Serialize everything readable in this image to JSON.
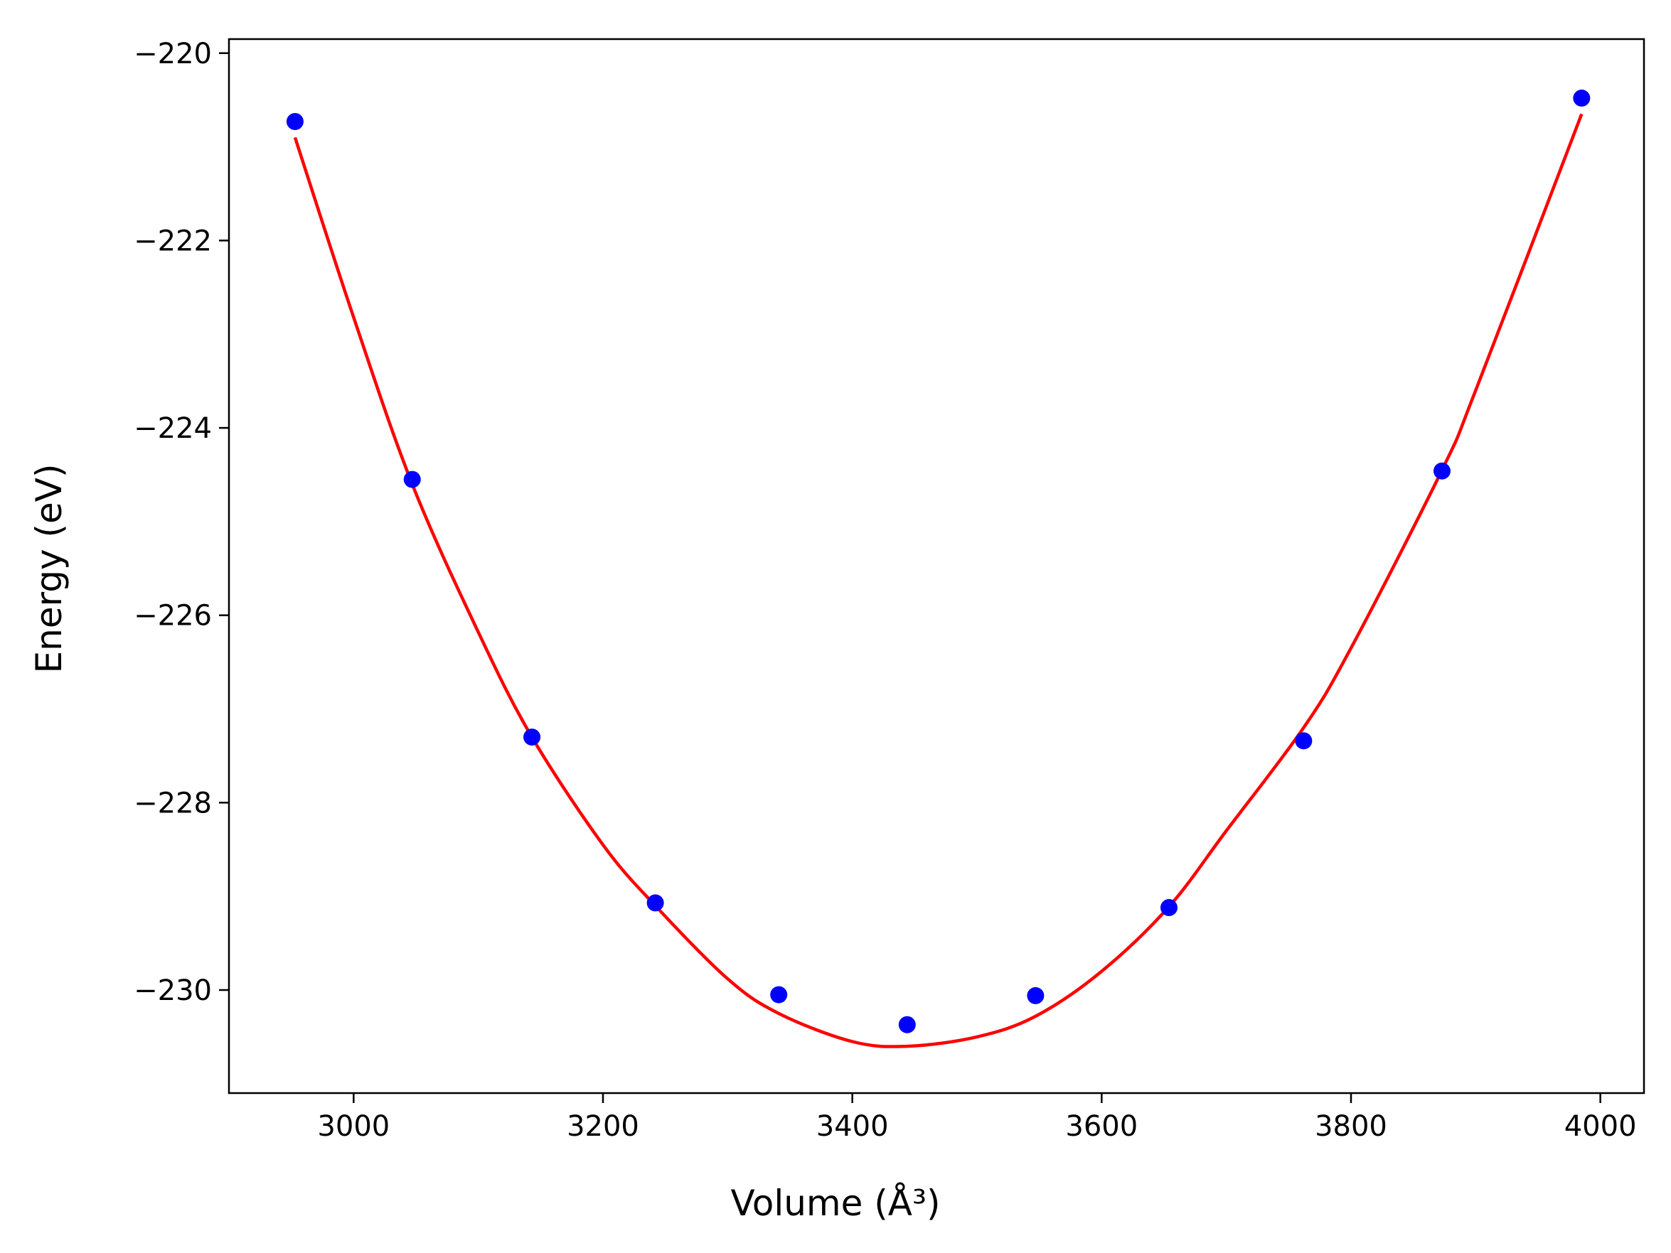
{
  "chart_data": {
    "type": "scatter",
    "xlabel": "Volume (Å³)",
    "ylabel": "Energy (eV)",
    "xlim": [
      2900,
      4035
    ],
    "ylim": [
      -231.1,
      -219.85
    ],
    "xticks": [
      3000,
      3200,
      3400,
      3600,
      3800,
      4000
    ],
    "xtick_labels": [
      "3000",
      "3200",
      "3400",
      "3600",
      "3800",
      "4000"
    ],
    "yticks": [
      -230,
      -228,
      -226,
      -224,
      -222,
      -220
    ],
    "ytick_labels": [
      "−230",
      "−228",
      "−226",
      "−224",
      "−222",
      "−220"
    ],
    "grid": false,
    "series": [
      {
        "kind": "points",
        "color": "#0000ff",
        "x": [
          2953,
          3047,
          3143,
          3242,
          3341,
          3444,
          3547,
          3654,
          3762,
          3873,
          3985
        ],
        "y": [
          -220.73,
          -224.55,
          -227.3,
          -229.07,
          -230.05,
          -230.37,
          -230.06,
          -229.12,
          -227.34,
          -224.46,
          -220.48
        ]
      },
      {
        "kind": "fit-curve",
        "color": "#ff0000",
        "x": [
          2953,
          3000,
          3047,
          3100,
          3143,
          3200,
          3242,
          3300,
          3341,
          3400,
          3444,
          3500,
          3547,
          3600,
          3654,
          3700,
          3762,
          3800,
          3873,
          3900,
          3985
        ],
        "y": [
          -220.9,
          -222.82,
          -224.6,
          -226.18,
          -227.3,
          -228.45,
          -229.1,
          -229.88,
          -230.25,
          -230.55,
          -230.6,
          -230.5,
          -230.28,
          -229.8,
          -229.11,
          -228.3,
          -227.2,
          -226.35,
          -224.45,
          -223.6,
          -220.65
        ]
      }
    ]
  }
}
